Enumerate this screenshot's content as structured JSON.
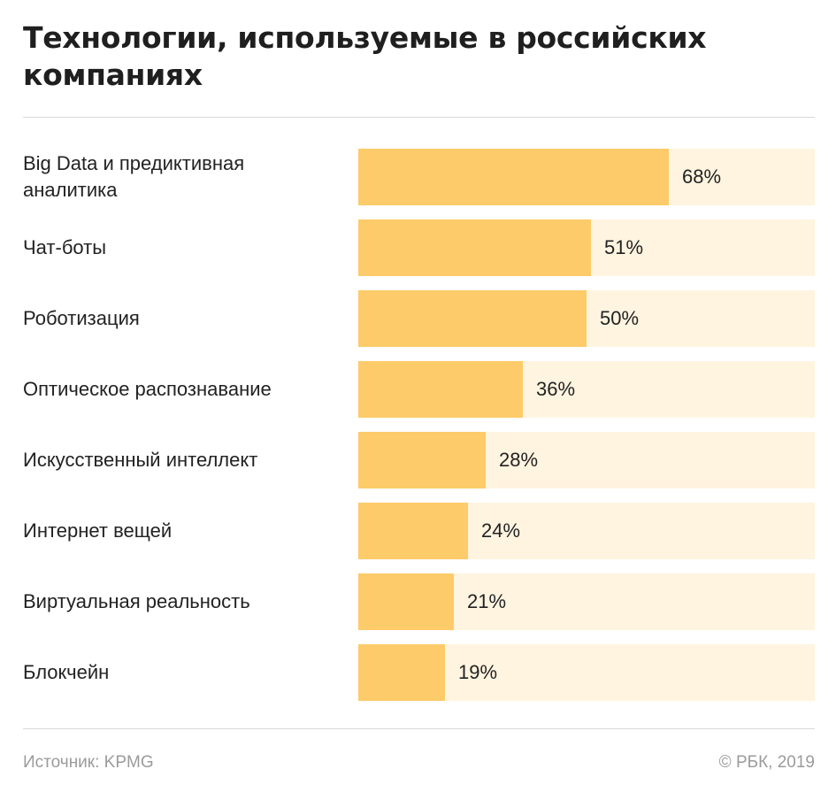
{
  "chart_data": {
    "type": "bar",
    "orientation": "horizontal",
    "title": "Технологии, используемые в российских компаниях",
    "categories": [
      "Big Data и предиктивная аналитика",
      "Чат-боты",
      "Роботизация",
      "Оптическое распознавание",
      "Искусственный интеллект",
      "Интернет вещей",
      "Виртуальная реальность",
      "Блокчейн"
    ],
    "values": [
      68,
      51,
      50,
      36,
      28,
      24,
      21,
      19
    ],
    "value_labels": [
      "68%",
      "51%",
      "50%",
      "36%",
      "28%",
      "24%",
      "21%",
      "19%"
    ],
    "xlim": [
      0,
      100
    ],
    "unit": "%",
    "grid": false,
    "colors": {
      "bar": "#fdcb69",
      "track": "#fff4e0"
    }
  },
  "footer": {
    "source": "Источник: KPMG",
    "copyright": "© РБК, 2019"
  }
}
